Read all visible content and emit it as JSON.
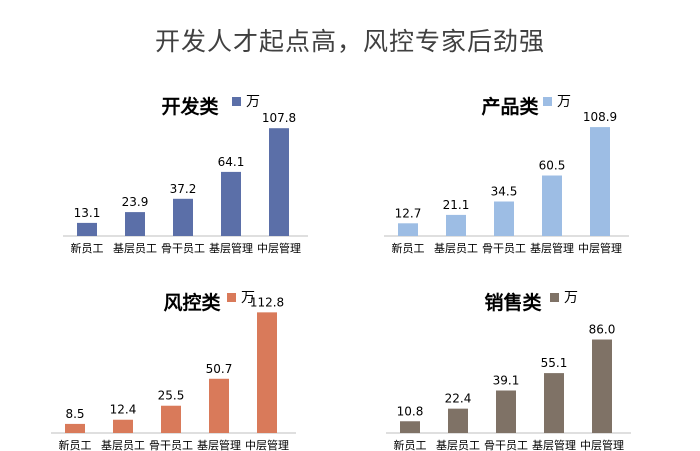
{
  "page_title": "开发人才起点高，风控专家后劲强",
  "chart_data": [
    {
      "type": "bar",
      "title": "开发类",
      "categories": [
        "新员工",
        "基层员工",
        "骨干员工",
        "基层管理",
        "中层管理"
      ],
      "series": [
        {
          "name": "万",
          "values": [
            13.1,
            23.9,
            37.2,
            64.1,
            107.8
          ]
        }
      ],
      "value_labels": [
        "13.1",
        "23.9",
        "37.2",
        "64.1",
        "107.8"
      ],
      "color": "#5b6fa8",
      "ylim": [
        0,
        115
      ],
      "legend": "top"
    },
    {
      "type": "bar",
      "title": "产品类",
      "categories": [
        "新员工",
        "基层员工",
        "骨干员工",
        "基层管理",
        "中层管理"
      ],
      "series": [
        {
          "name": "万",
          "values": [
            12.7,
            21.1,
            34.5,
            60.5,
            108.9
          ]
        }
      ],
      "value_labels": [
        "12.7",
        "21.1",
        "34.5",
        "60.5",
        "108.9"
      ],
      "color": "#9dbde4",
      "ylim": [
        0,
        115
      ],
      "legend": "top"
    },
    {
      "type": "bar",
      "title": "风控类",
      "categories": [
        "新员工",
        "基层员工",
        "骨干员工",
        "基层管理",
        "中层管理"
      ],
      "series": [
        {
          "name": "万",
          "values": [
            8.5,
            12.4,
            25.5,
            50.7,
            112.8
          ]
        }
      ],
      "value_labels": [
        "8.5",
        "12.4",
        "25.5",
        "50.7",
        "112.8"
      ],
      "color": "#d97a5a",
      "ylim": [
        0,
        115
      ],
      "legend": "top"
    },
    {
      "type": "bar",
      "title": "销售类",
      "categories": [
        "新员工",
        "基层员工",
        "骨干员工",
        "基层管理",
        "中层管理"
      ],
      "series": [
        {
          "name": "万",
          "values": [
            10.8,
            22.4,
            39.1,
            55.1,
            86.0
          ]
        }
      ],
      "value_labels": [
        "10.8",
        "22.4",
        "39.1",
        "55.1",
        "86.0"
      ],
      "color": "#7f7266",
      "ylim": [
        0,
        115
      ],
      "legend": "top"
    }
  ]
}
